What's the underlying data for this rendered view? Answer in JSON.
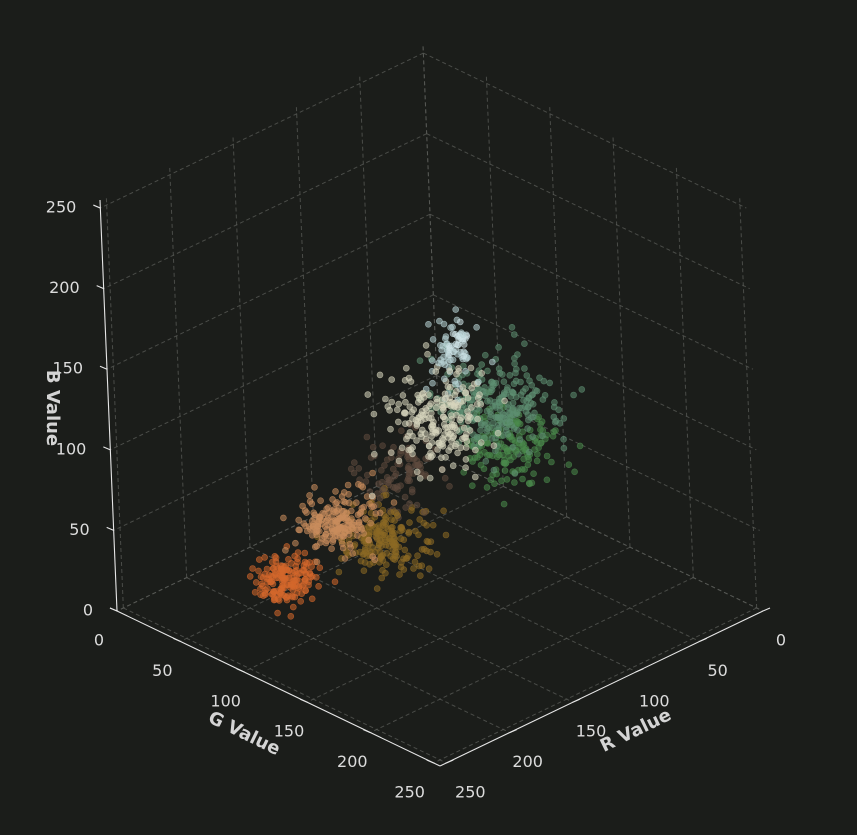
{
  "chart_data": {
    "type": "scatter",
    "projection": "3d",
    "title": "",
    "xlabel": "R Value",
    "ylabel": "G Value",
    "zlabel": "B Value",
    "xlim": [
      0,
      255
    ],
    "ylim": [
      0,
      255
    ],
    "zlim": [
      0,
      255
    ],
    "x_ticks": [
      "0",
      "50",
      "100",
      "150",
      "200",
      "250"
    ],
    "y_ticks": [
      "0",
      "50",
      "100",
      "150",
      "200",
      "250"
    ],
    "z_ticks": [
      "0",
      "50",
      "100",
      "150",
      "200",
      "250"
    ],
    "grid": true,
    "background": "#1b1d1a",
    "clusters": [
      {
        "center": [
          215,
          95,
          40
        ],
        "spread": [
          10,
          8,
          6
        ],
        "count": 170,
        "color": "#d4672c"
      },
      {
        "center": [
          205,
          130,
          85
        ],
        "spread": [
          12,
          9,
          7
        ],
        "count": 190,
        "color": "#c98d5c"
      },
      {
        "center": [
          150,
          110,
          45
        ],
        "spread": [
          14,
          12,
          9
        ],
        "count": 200,
        "color": "#8c6a25"
      },
      {
        "center": [
          120,
          95,
          70
        ],
        "spread": [
          14,
          12,
          10
        ],
        "count": 100,
        "color": "#5e4a3e"
      },
      {
        "center": [
          200,
          205,
          175
        ],
        "spread": [
          14,
          14,
          14
        ],
        "count": 210,
        "color": "#d7d6be"
      },
      {
        "center": [
          100,
          150,
          125
        ],
        "spread": [
          16,
          16,
          12
        ],
        "count": 250,
        "color": "#5e8f72"
      },
      {
        "center": [
          80,
          140,
          90
        ],
        "spread": [
          14,
          12,
          10
        ],
        "count": 160,
        "color": "#4a8a4c"
      },
      {
        "center": [
          180,
          200,
          205
        ],
        "spread": [
          8,
          8,
          10
        ],
        "count": 60,
        "color": "#b8d3d6"
      },
      {
        "center": [
          185,
          212,
          222
        ],
        "spread": [
          3,
          3,
          6
        ],
        "count": 24,
        "color": "#cfe4e8"
      }
    ]
  }
}
